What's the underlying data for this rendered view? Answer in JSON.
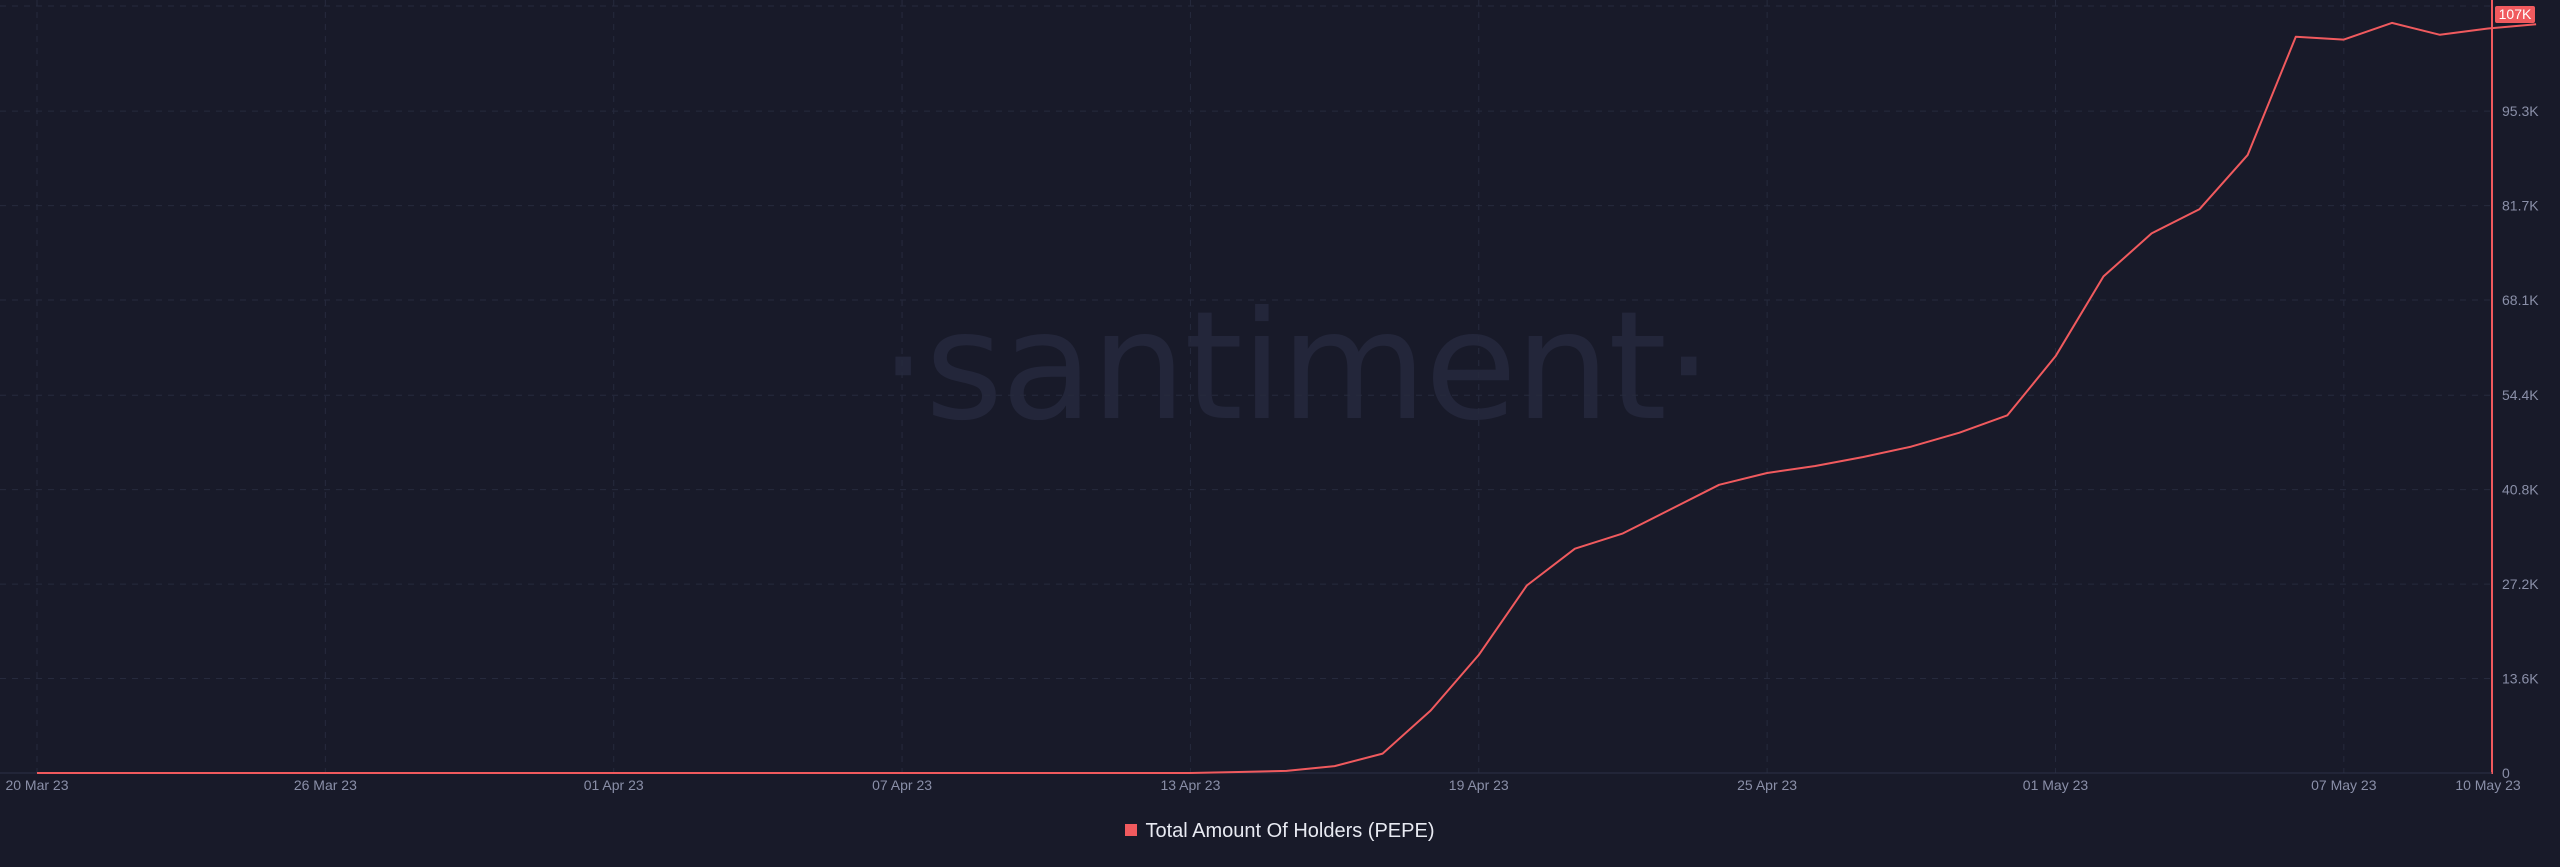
{
  "watermark": "·santiment·",
  "colors": {
    "background": "#181a29",
    "series": "#f05a5e",
    "grid": "#262a3d",
    "axis_text": "#8a8fa8"
  },
  "chart_data": {
    "type": "line",
    "title": "",
    "xlabel": "",
    "ylabel": "",
    "grid": true,
    "legend_position": "bottom-center",
    "y_axis_side": "right",
    "xlim": [
      "2023-03-20",
      "2023-05-10"
    ],
    "ylim": [
      0,
      109000
    ],
    "x_ticks": [
      {
        "date": "2023-03-20",
        "label": "20 Mar 23"
      },
      {
        "date": "2023-03-26",
        "label": "26 Mar 23"
      },
      {
        "date": "2023-04-01",
        "label": "01 Apr 23"
      },
      {
        "date": "2023-04-07",
        "label": "07 Apr 23"
      },
      {
        "date": "2023-04-13",
        "label": "13 Apr 23"
      },
      {
        "date": "2023-04-19",
        "label": "19 Apr 23"
      },
      {
        "date": "2023-04-25",
        "label": "25 Apr 23"
      },
      {
        "date": "2023-05-01",
        "label": "01 May 23"
      },
      {
        "date": "2023-05-07",
        "label": "07 May 23"
      },
      {
        "date": "2023-05-10",
        "label": "10 May 23"
      }
    ],
    "y_ticks": [
      {
        "value": 0,
        "label": "0"
      },
      {
        "value": 13600,
        "label": "13.6K"
      },
      {
        "value": 27200,
        "label": "27.2K"
      },
      {
        "value": 40800,
        "label": "40.8K"
      },
      {
        "value": 54400,
        "label": "54.4K"
      },
      {
        "value": 68100,
        "label": "68.1K"
      },
      {
        "value": 81700,
        "label": "81.7K"
      },
      {
        "value": 95300,
        "label": "95.3K"
      }
    ],
    "last_value_label": "107K",
    "series": [
      {
        "name": "Total Amount Of Holders (PEPE)",
        "color": "#f05a5e",
        "points": [
          [
            "2023-03-20",
            0
          ],
          [
            "2023-03-21",
            0
          ],
          [
            "2023-03-22",
            0
          ],
          [
            "2023-03-23",
            0
          ],
          [
            "2023-03-24",
            0
          ],
          [
            "2023-03-25",
            0
          ],
          [
            "2023-03-26",
            0
          ],
          [
            "2023-03-27",
            0
          ],
          [
            "2023-03-28",
            0
          ],
          [
            "2023-03-29",
            0
          ],
          [
            "2023-03-30",
            0
          ],
          [
            "2023-03-31",
            0
          ],
          [
            "2023-04-01",
            0
          ],
          [
            "2023-04-02",
            0
          ],
          [
            "2023-04-03",
            0
          ],
          [
            "2023-04-04",
            0
          ],
          [
            "2023-04-05",
            0
          ],
          [
            "2023-04-06",
            0
          ],
          [
            "2023-04-07",
            0
          ],
          [
            "2023-04-08",
            0
          ],
          [
            "2023-04-09",
            0
          ],
          [
            "2023-04-10",
            0
          ],
          [
            "2023-04-11",
            0
          ],
          [
            "2023-04-12",
            0
          ],
          [
            "2023-04-13",
            0
          ],
          [
            "2023-04-14",
            150
          ],
          [
            "2023-04-15",
            300
          ],
          [
            "2023-04-16",
            1000
          ],
          [
            "2023-04-17",
            2800
          ],
          [
            "2023-04-18",
            9000
          ],
          [
            "2023-04-19",
            17000
          ],
          [
            "2023-04-20",
            27000
          ],
          [
            "2023-04-21",
            32300
          ],
          [
            "2023-04-22",
            34500
          ],
          [
            "2023-04-23",
            38000
          ],
          [
            "2023-04-24",
            41500
          ],
          [
            "2023-04-25",
            43200
          ],
          [
            "2023-04-26",
            44200
          ],
          [
            "2023-04-27",
            45500
          ],
          [
            "2023-04-28",
            47000
          ],
          [
            "2023-04-29",
            49000
          ],
          [
            "2023-04-30",
            51500
          ],
          [
            "2023-05-01",
            60000
          ],
          [
            "2023-05-02",
            71500
          ],
          [
            "2023-05-03",
            77700
          ],
          [
            "2023-05-04",
            81200
          ],
          [
            "2023-05-05",
            89000
          ],
          [
            "2023-05-06",
            106000
          ],
          [
            "2023-05-07",
            105600
          ],
          [
            "2023-05-08",
            108000
          ],
          [
            "2023-05-09",
            106300
          ],
          [
            "2023-05-10",
            107200
          ],
          [
            "2023-05-11",
            107800
          ]
        ]
      }
    ]
  }
}
